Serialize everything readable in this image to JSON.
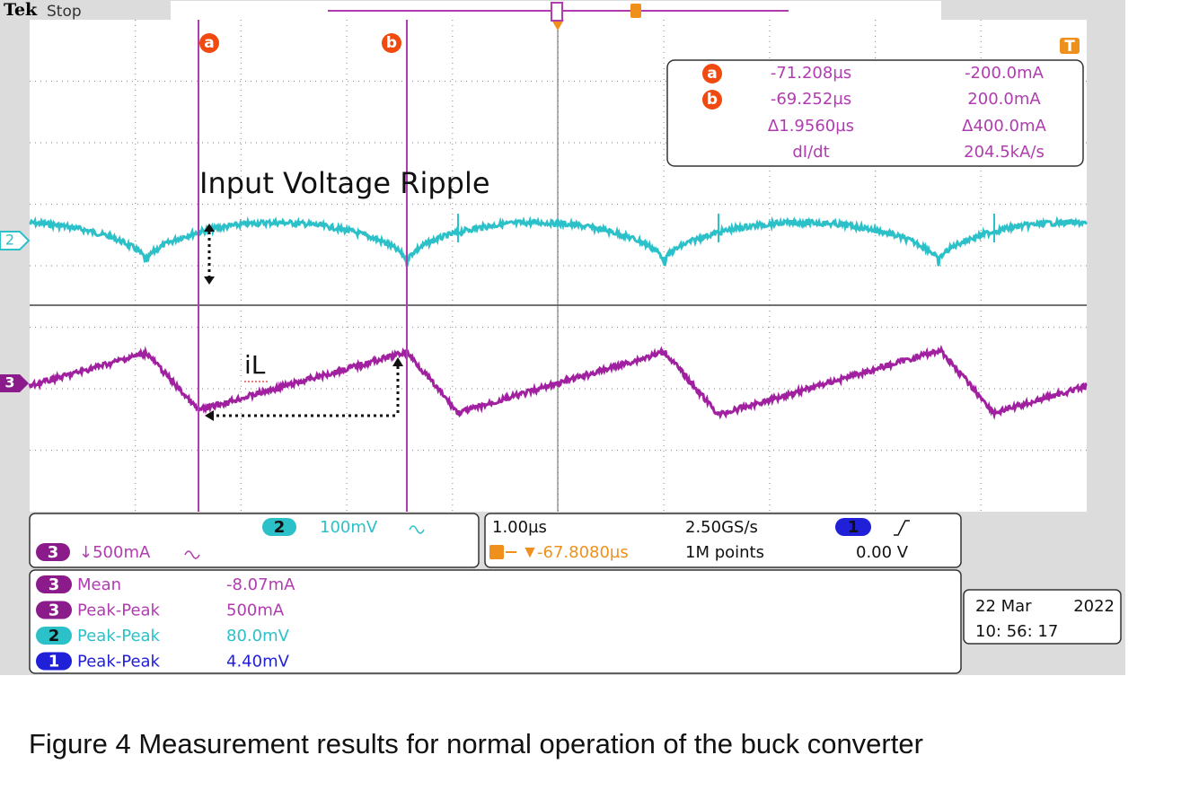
{
  "header": {
    "brand": "Tek",
    "status": "Stop"
  },
  "cursors": {
    "a": "a",
    "b": "b",
    "trigger": "T"
  },
  "readout": {
    "cursor_a": {
      "time": "-71.208µs",
      "value": "-200.0mA"
    },
    "cursor_b": {
      "time": "-69.252µs",
      "value": "200.0mA"
    },
    "delta": {
      "time": "Δ1.9560µs",
      "value": "Δ400.0mA"
    },
    "rate": {
      "label": "dI/dt",
      "value": "204.5kA/s"
    }
  },
  "annotations": {
    "ripple": "Input Voltage Ripple",
    "current": "iL"
  },
  "channel_markers": {
    "ch2": "2",
    "ch3": "3"
  },
  "settings": {
    "ch2": {
      "badge": "2",
      "scale": "100mV"
    },
    "ch3": {
      "badge": "3",
      "scale": "↓500mA"
    },
    "timebase": "1.00µs",
    "sample_rate": "2.50GS/s",
    "trigger_position": "-67.8080µs",
    "record_length": "1M points",
    "trigger": {
      "badge": "1",
      "level": "0.00 V"
    }
  },
  "measurements": [
    {
      "channel": "3",
      "name": "Mean",
      "value": "-8.07mA"
    },
    {
      "channel": "3",
      "name": "Peak-Peak",
      "value": "500mA"
    },
    {
      "channel": "2",
      "name": "Peak-Peak",
      "value": "80.0mV"
    },
    {
      "channel": "1",
      "name": "Peak-Peak",
      "value": "4.40mV"
    }
  ],
  "date": {
    "day": "22 Mar",
    "year": "2022",
    "time": "10: 56: 17"
  },
  "caption": "Figure 4 Measurement results for normal operation of the buck converter"
}
